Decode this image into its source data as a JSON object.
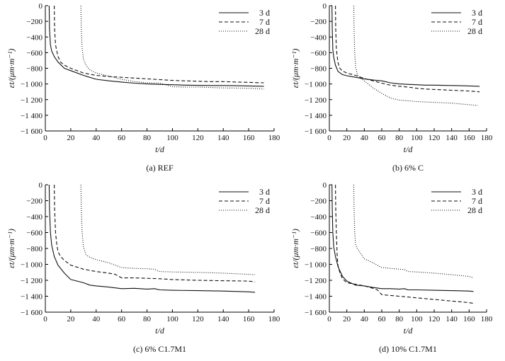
{
  "chart_data": [
    {
      "type": "line",
      "title": "(a) REF",
      "xlabel": "t/d",
      "ylabel": "εt/(μm·m⁻¹)",
      "xlim": [
        0,
        180
      ],
      "ylim": [
        -1600,
        0
      ],
      "xticks": [
        "0",
        "20",
        "40",
        "60",
        "80",
        "100",
        "120",
        "140",
        "160",
        "180"
      ],
      "yticks": [
        "0",
        "−200",
        "−400",
        "−600",
        "−800",
        "−1 000",
        "−1 200",
        "−1 400",
        "−1 600"
      ],
      "legend_position": "top-right",
      "series": [
        {
          "name": "3 d",
          "dash": "solid",
          "x": [
            3,
            3.3,
            4,
            5,
            7,
            10,
            15,
            20,
            30,
            40,
            50,
            60,
            70,
            80,
            90,
            100,
            110,
            120,
            130,
            140,
            150,
            160,
            172
          ],
          "y": [
            0,
            -300,
            -500,
            -580,
            -650,
            -720,
            -800,
            -830,
            -890,
            -940,
            -960,
            -975,
            -990,
            -1000,
            -1005,
            -1010,
            -1015,
            -1018,
            -1020,
            -1020,
            -1022,
            -1025,
            -1030
          ]
        },
        {
          "name": "7 d",
          "dash": "dashed",
          "x": [
            7,
            7.3,
            8,
            9,
            10,
            12,
            15,
            20,
            30,
            40,
            50,
            60,
            70,
            80,
            90,
            100,
            110,
            120,
            130,
            140,
            150,
            160,
            172
          ],
          "y": [
            0,
            -300,
            -500,
            -580,
            -650,
            -720,
            -760,
            -800,
            -860,
            -890,
            -905,
            -915,
            -925,
            -935,
            -945,
            -955,
            -960,
            -965,
            -970,
            -970,
            -975,
            -980,
            -985
          ]
        },
        {
          "name": "28 d",
          "dash": "dotted",
          "x": [
            28,
            28.3,
            29,
            30,
            32,
            35,
            40,
            50,
            60,
            70,
            80,
            90,
            100,
            110,
            120,
            130,
            140,
            150,
            160,
            172
          ],
          "y": [
            0,
            -300,
            -550,
            -680,
            -760,
            -820,
            -860,
            -900,
            -940,
            -970,
            -985,
            -990,
            -1035,
            -1040,
            -1040,
            -1045,
            -1050,
            -1052,
            -1055,
            -1065
          ]
        }
      ]
    },
    {
      "type": "line",
      "title": "(b) 6% C",
      "xlabel": "t/d",
      "ylabel": "εt/(μm·m⁻¹)",
      "xlim": [
        0,
        180
      ],
      "ylim": [
        -1600,
        0
      ],
      "xticks": [
        "0",
        "20",
        "40",
        "60",
        "80",
        "100",
        "120",
        "140",
        "160",
        "180"
      ],
      "yticks": [
        "0",
        "−200",
        "−400",
        "−600",
        "−800",
        "−1 000",
        "−1 200",
        "−1 400",
        "−1 600"
      ],
      "legend_position": "top-right",
      "series": [
        {
          "name": "3 d",
          "dash": "solid",
          "x": [
            3,
            3.3,
            4,
            5,
            7,
            10,
            15,
            20,
            30,
            40,
            50,
            60,
            70,
            80,
            90,
            100,
            110,
            120,
            130,
            140,
            150,
            160,
            172
          ],
          "y": [
            0,
            -300,
            -560,
            -660,
            -760,
            -840,
            -880,
            -895,
            -915,
            -935,
            -950,
            -960,
            -985,
            -1000,
            -1005,
            -1010,
            -1015,
            -1015,
            -1018,
            -1020,
            -1022,
            -1025,
            -1030
          ]
        },
        {
          "name": "7 d",
          "dash": "dashed",
          "x": [
            7,
            7.3,
            8,
            9,
            10,
            12,
            15,
            20,
            30,
            40,
            50,
            60,
            70,
            80,
            90,
            100,
            110,
            120,
            130,
            140,
            150,
            160,
            172
          ],
          "y": [
            0,
            -300,
            -550,
            -650,
            -730,
            -800,
            -835,
            -860,
            -890,
            -930,
            -960,
            -990,
            -1015,
            -1030,
            -1040,
            -1055,
            -1065,
            -1070,
            -1075,
            -1080,
            -1085,
            -1090,
            -1100
          ]
        },
        {
          "name": "28 d",
          "dash": "dotted",
          "x": [
            28,
            28.3,
            29,
            30,
            32,
            35,
            40,
            50,
            60,
            70,
            80,
            90,
            100,
            110,
            120,
            130,
            140,
            150,
            160,
            170
          ],
          "y": [
            0,
            -300,
            -600,
            -780,
            -880,
            -920,
            -960,
            -1050,
            -1120,
            -1180,
            -1205,
            -1215,
            -1225,
            -1230,
            -1235,
            -1240,
            -1245,
            -1255,
            -1265,
            -1275
          ]
        }
      ]
    },
    {
      "type": "line",
      "title": "(c) 6% C1.7M1",
      "xlabel": "t/d",
      "ylabel": "εt/(μm·m⁻¹)",
      "xlim": [
        0,
        180
      ],
      "ylim": [
        -1600,
        0
      ],
      "xticks": [
        "0",
        "20",
        "40",
        "60",
        "80",
        "100",
        "120",
        "140",
        "160",
        "180"
      ],
      "yticks": [
        "0",
        "−200",
        "−400",
        "−600",
        "−800",
        "−1 000",
        "−1 200",
        "−1 400",
        "−1 600"
      ],
      "legend_position": "top-right",
      "series": [
        {
          "name": "3 d",
          "dash": "solid",
          "x": [
            3,
            3.3,
            4,
            5,
            7,
            10,
            15,
            20,
            30,
            35,
            40,
            50,
            60,
            70,
            80,
            86,
            90,
            100,
            120,
            140,
            160,
            165
          ],
          "y": [
            0,
            -300,
            -600,
            -760,
            -900,
            -1010,
            -1110,
            -1190,
            -1230,
            -1260,
            -1270,
            -1285,
            -1305,
            -1300,
            -1310,
            -1305,
            -1320,
            -1325,
            -1330,
            -1335,
            -1345,
            -1350
          ]
        },
        {
          "name": "7 d",
          "dash": "dashed",
          "x": [
            7,
            7.3,
            8,
            9,
            10,
            12,
            15,
            20,
            30,
            40,
            50,
            55,
            60,
            70,
            80,
            90,
            100,
            120,
            140,
            160,
            165
          ],
          "y": [
            0,
            -300,
            -600,
            -750,
            -840,
            -900,
            -950,
            -1010,
            -1060,
            -1090,
            -1110,
            -1125,
            -1170,
            -1170,
            -1175,
            -1180,
            -1190,
            -1200,
            -1205,
            -1210,
            -1220
          ]
        },
        {
          "name": "28 d",
          "dash": "dotted",
          "x": [
            28,
            28.3,
            29,
            30,
            32,
            35,
            40,
            50,
            60,
            70,
            80,
            86,
            90,
            100,
            120,
            140,
            160,
            165
          ],
          "y": [
            0,
            -300,
            -600,
            -780,
            -880,
            -910,
            -940,
            -980,
            -1040,
            -1050,
            -1055,
            -1060,
            -1090,
            -1095,
            -1100,
            -1110,
            -1125,
            -1130
          ]
        }
      ]
    },
    {
      "type": "line",
      "title": "(d) 10% C1.7M1",
      "xlabel": "t/d",
      "ylabel": "εt/(μm·m⁻¹)",
      "xlim": [
        0,
        180
      ],
      "ylim": [
        -1600,
        0
      ],
      "xticks": [
        "0",
        "20",
        "40",
        "60",
        "80",
        "100",
        "120",
        "140",
        "160",
        "180"
      ],
      "yticks": [
        "0",
        "−200",
        "−400",
        "−600",
        "−800",
        "−1 000",
        "−1 200",
        "−1 400",
        "−1 600"
      ],
      "legend_position": "top-right",
      "series": [
        {
          "name": "3 d",
          "dash": "solid",
          "x": [
            3,
            3.3,
            4,
            5,
            7,
            10,
            15,
            20,
            30,
            40,
            50,
            60,
            70,
            80,
            86,
            90,
            100,
            120,
            140,
            160,
            165
          ],
          "y": [
            0,
            -300,
            -600,
            -780,
            -900,
            -1030,
            -1150,
            -1210,
            -1260,
            -1270,
            -1290,
            -1305,
            -1305,
            -1310,
            -1305,
            -1320,
            -1320,
            -1325,
            -1330,
            -1335,
            -1340
          ]
        },
        {
          "name": "7 d",
          "dash": "dashed",
          "x": [
            7,
            7.3,
            8,
            9,
            10,
            12,
            15,
            20,
            30,
            40,
            50,
            55,
            60,
            70,
            80,
            90,
            100,
            120,
            140,
            160,
            165
          ],
          "y": [
            0,
            -300,
            -600,
            -900,
            -1020,
            -1100,
            -1180,
            -1230,
            -1250,
            -1270,
            -1300,
            -1320,
            -1380,
            -1390,
            -1400,
            -1410,
            -1420,
            -1440,
            -1460,
            -1480,
            -1490
          ]
        },
        {
          "name": "28 d",
          "dash": "dotted",
          "x": [
            28,
            28.3,
            29,
            30,
            32,
            35,
            40,
            50,
            60,
            70,
            80,
            86,
            90,
            100,
            120,
            140,
            160,
            165
          ],
          "y": [
            0,
            -300,
            -600,
            -750,
            -800,
            -850,
            -930,
            -980,
            -1040,
            -1050,
            -1060,
            -1065,
            -1090,
            -1095,
            -1110,
            -1130,
            -1150,
            -1170
          ]
        }
      ]
    }
  ]
}
